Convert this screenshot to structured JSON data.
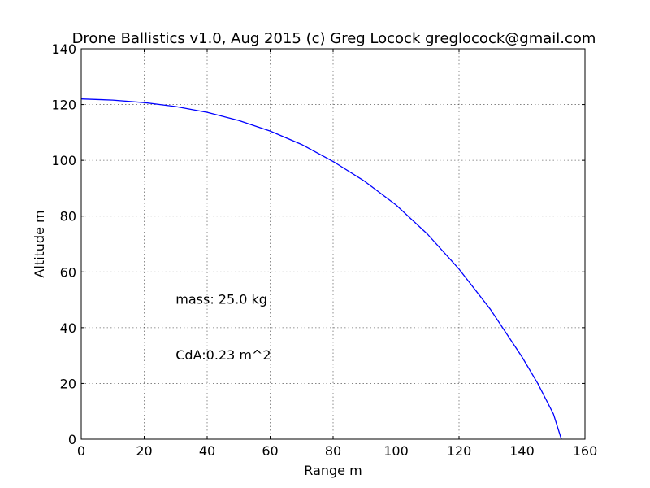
{
  "chart_data": {
    "type": "line",
    "title": "Drone Ballistics v1.0, Aug 2015 (c) Greg Locock greglocock@gmail.com",
    "xlabel": "Range m",
    "ylabel": "Altitude m",
    "xlim": [
      0,
      160
    ],
    "ylim": [
      0,
      140
    ],
    "xticks": [
      0,
      20,
      40,
      60,
      80,
      100,
      120,
      140,
      160
    ],
    "yticks": [
      0,
      20,
      40,
      60,
      80,
      100,
      120,
      140
    ],
    "grid": true,
    "series": [
      {
        "color": "#0000ff",
        "x": [
          0,
          10,
          20,
          30,
          40,
          50,
          60,
          70,
          80,
          90,
          100,
          110,
          120,
          130,
          140,
          145,
          150,
          152.5
        ],
        "y": [
          122,
          121.6,
          120.7,
          119.3,
          117.2,
          114.3,
          110.5,
          105.7,
          99.6,
          92.5,
          84,
          73.5,
          61,
          46.5,
          29.5,
          20,
          9,
          0
        ]
      }
    ],
    "annotations": [
      {
        "text": "mass: 25.0 kg",
        "x": 30,
        "y": 50
      },
      {
        "text": "CdA:0.23 m^2",
        "x": 30,
        "y": 30
      }
    ]
  }
}
